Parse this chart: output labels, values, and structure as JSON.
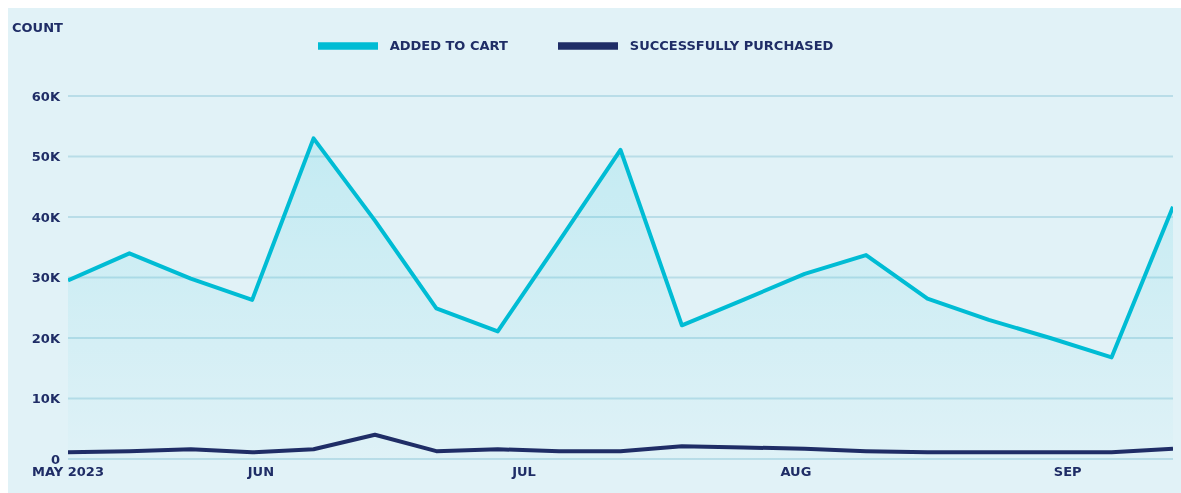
{
  "chart_data": {
    "type": "line",
    "ylabel": "COUNT",
    "x": [
      "2023-05-10",
      "2023-05-17",
      "2023-05-24",
      "2023-05-31",
      "2023-06-07",
      "2023-06-14",
      "2023-06-21",
      "2023-06-28",
      "2023-07-05",
      "2023-07-12",
      "2023-07-19",
      "2023-07-26",
      "2023-08-02",
      "2023-08-09",
      "2023-08-16",
      "2023-08-23",
      "2023-08-30",
      "2023-09-06",
      "2023-09-13"
    ],
    "series": [
      {
        "name": "ADDED TO CART",
        "type": "area",
        "color": "#00bcd4",
        "values": [
          29500,
          34000,
          29800,
          26300,
          53000,
          39400,
          24900,
          21100,
          36000,
          51100,
          22100,
          26300,
          30600,
          33700,
          26500,
          23000,
          20000,
          16800,
          41700
        ]
      },
      {
        "name": "SUCCESSFULLY PURCHASED",
        "color": "#1f2d66",
        "values": [
          1100,
          1300,
          1600,
          1100,
          1600,
          4000,
          1300,
          1600,
          1300,
          1300,
          2100,
          1900,
          1700,
          1300,
          1100,
          1100,
          1100,
          1100,
          1700
        ]
      }
    ],
    "xlim": [
      "2023-05-10",
      "2023-09-13"
    ],
    "xticks": [
      {
        "value": "2023-05-10",
        "label": "MAY 2023"
      },
      {
        "value": "2023-06-01",
        "label": "JUN"
      },
      {
        "value": "2023-07-01",
        "label": "JUL"
      },
      {
        "value": "2023-08-01",
        "label": "AUG"
      },
      {
        "value": "2023-09-01",
        "label": "SEP"
      }
    ],
    "ylim": [
      0,
      60000
    ],
    "yticks": [
      {
        "value": 0,
        "label": "0"
      },
      {
        "value": 10000,
        "label": "10K"
      },
      {
        "value": 20000,
        "label": "20K"
      },
      {
        "value": 30000,
        "label": "30K"
      },
      {
        "value": 40000,
        "label": "40K"
      },
      {
        "value": 50000,
        "label": "50K"
      },
      {
        "value": 60000,
        "label": "60K"
      }
    ],
    "grid": "y",
    "legend": "top",
    "marker": "none",
    "line_style": "solid"
  }
}
